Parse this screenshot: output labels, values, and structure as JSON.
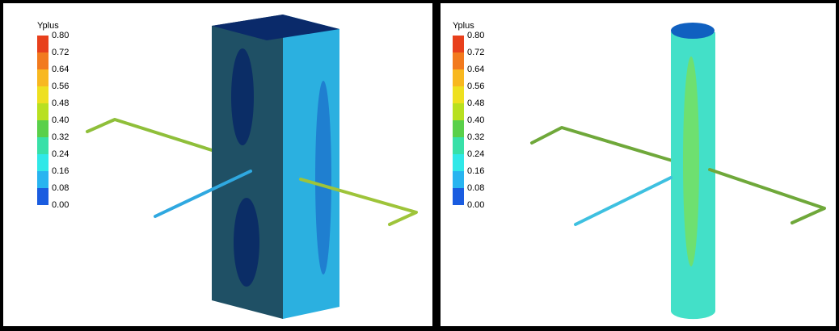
{
  "panels": [
    {
      "legend": {
        "title": "Yplus",
        "ticks": [
          "0.80",
          "0.72",
          "0.64",
          "0.56",
          "0.48",
          "0.40",
          "0.32",
          "0.24",
          "0.16",
          "0.08",
          "0.00"
        ]
      }
    },
    {
      "legend": {
        "title": "Yplus",
        "ticks": [
          "0.80",
          "0.72",
          "0.64",
          "0.56",
          "0.48",
          "0.40",
          "0.32",
          "0.24",
          "0.16",
          "0.08",
          "0.00"
        ]
      }
    }
  ]
}
